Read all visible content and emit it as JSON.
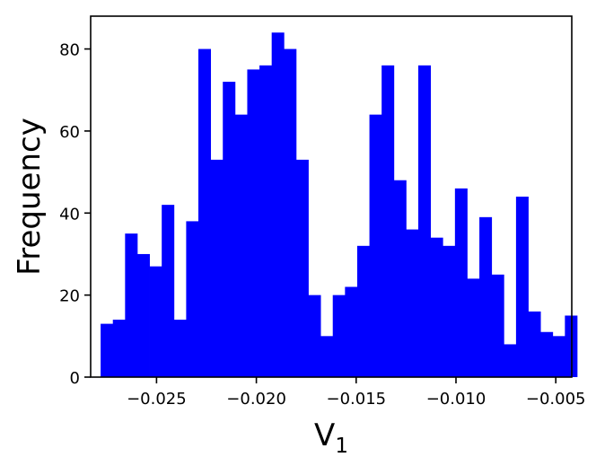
{
  "chart_data": {
    "type": "bar",
    "subtype": "histogram",
    "title": "",
    "xlabel_main": "V",
    "xlabel_sub": "1",
    "ylabel": "Frequency",
    "bar_color": "#0000ff",
    "xlim": [
      -0.0283,
      -0.0042
    ],
    "ylim": [
      0,
      88
    ],
    "x_ticks": [
      -0.025,
      -0.02,
      -0.015,
      -0.01,
      -0.005
    ],
    "x_tick_labels": [
      "−0.025",
      "−0.020",
      "−0.015",
      "−0.010",
      "−0.005"
    ],
    "y_ticks": [
      0,
      20,
      40,
      60,
      80
    ],
    "y_tick_labels": [
      "0",
      "20",
      "40",
      "60",
      "80"
    ],
    "bin_start": -0.0278,
    "bin_width": 0.000612,
    "values": [
      13,
      14,
      35,
      30,
      27,
      42,
      14,
      38,
      80,
      53,
      72,
      64,
      75,
      76,
      84,
      80,
      53,
      20,
      10,
      20,
      22,
      32,
      64,
      76,
      48,
      36,
      76,
      34,
      32,
      46,
      24,
      39,
      25,
      8,
      44,
      16,
      11,
      10,
      15
    ],
    "grid": false,
    "legend": "none"
  }
}
